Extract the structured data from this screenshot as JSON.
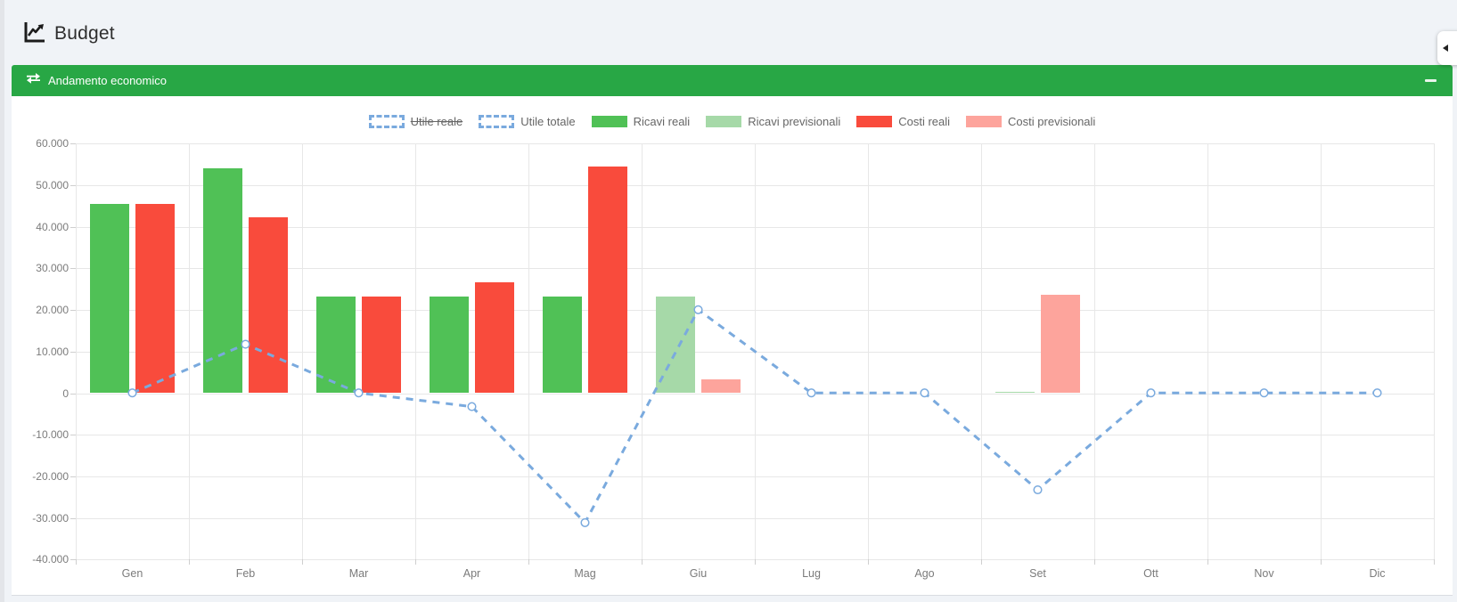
{
  "page": {
    "title": "Budget"
  },
  "panel": {
    "title": "Andamento economico",
    "header_color": "#28a745"
  },
  "icons": {
    "page_title_icon": "line-chart",
    "panel_title_icon": "exchange-arrows",
    "collapse_icon": "minus",
    "side_tab_icon": "caret-left"
  },
  "chart_data": {
    "type": "bar",
    "title": "",
    "categories": [
      "Gen",
      "Feb",
      "Mar",
      "Apr",
      "Mag",
      "Giu",
      "Lug",
      "Ago",
      "Set",
      "Ott",
      "Nov",
      "Dic"
    ],
    "y_axis": {
      "min": -40000,
      "max": 60000,
      "step": 10000,
      "tick_labels": [
        "60.000",
        "50.000",
        "40.000",
        "30.000",
        "20.000",
        "10.000",
        "0",
        "-10.000",
        "-20.000",
        "-30.000",
        "-40.000"
      ]
    },
    "grid": true,
    "legend_position": "top",
    "line_color": "#7aaade",
    "series": [
      {
        "name": "Utile reale",
        "type": "line",
        "hidden": true,
        "dashed": true,
        "color": "#7aaade",
        "values": []
      },
      {
        "name": "Utile totale",
        "type": "line",
        "hidden": false,
        "dashed": true,
        "color": "#7aaade",
        "values": [
          0,
          11700,
          0,
          -3300,
          -31200,
          20000,
          0,
          0,
          -23300,
          0,
          0,
          0
        ]
      },
      {
        "name": "Ricavi reali",
        "type": "bar",
        "slot": "left",
        "color": "#50c156",
        "values": [
          45500,
          54000,
          23300,
          23300,
          23300,
          0,
          0,
          0,
          0,
          0,
          0,
          0
        ]
      },
      {
        "name": "Ricavi previsionali",
        "type": "bar",
        "slot": "left",
        "color": "#a6d9a8",
        "values": [
          0,
          0,
          0,
          0,
          0,
          23300,
          0,
          0,
          300,
          0,
          0,
          0
        ]
      },
      {
        "name": "Costi reali",
        "type": "bar",
        "slot": "right",
        "color": "#f94b3c",
        "values": [
          45500,
          42300,
          23300,
          26600,
          54500,
          0,
          0,
          0,
          0,
          0,
          0,
          0
        ]
      },
      {
        "name": "Costi previsionali",
        "type": "bar",
        "slot": "right",
        "color": "#fda49c",
        "values": [
          0,
          0,
          0,
          0,
          0,
          3300,
          0,
          0,
          23600,
          0,
          0,
          0
        ]
      }
    ]
  }
}
